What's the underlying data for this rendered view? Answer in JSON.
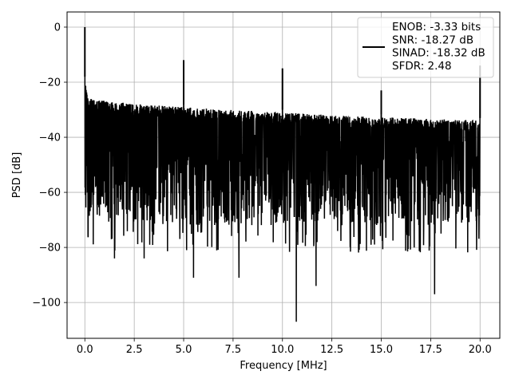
{
  "chart_data": {
    "type": "line",
    "title": "",
    "xlabel": "Frequency [MHz]",
    "ylabel": "PSD [dB]",
    "xlim": [
      -0.9,
      21.0
    ],
    "ylim": [
      -113,
      5.5
    ],
    "xticks": [
      0.0,
      2.5,
      5.0,
      7.5,
      10.0,
      12.5,
      15.0,
      17.5,
      20.0
    ],
    "xtick_labels": [
      "0.0",
      "2.5",
      "5.0",
      "7.5",
      "10.0",
      "12.5",
      "15.0",
      "17.5",
      "20.0"
    ],
    "yticks": [
      0,
      -20,
      -40,
      -60,
      -80,
      -100
    ],
    "ytick_labels": [
      "0",
      "−20",
      "−40",
      "−60",
      "−80",
      "−100"
    ],
    "grid": true,
    "legend_position": "upper-right",
    "legend_lines": [
      "ENOB: -3.33 bits",
      "SNR: -18.27 dB",
      "SINAD: -18.32 dB",
      "SFDR: 2.48"
    ],
    "series": [
      {
        "color": "#000000",
        "x_range": [
          0.0,
          20.0
        ],
        "description_points": {
          "spikes": [
            {
              "x": 0.0,
              "y": 0
            },
            {
              "x": 5.0,
              "y": -12
            },
            {
              "x": 10.0,
              "y": -15
            },
            {
              "x": 15.0,
              "y": -23
            },
            {
              "x": 20.0,
              "y": -14
            }
          ],
          "upper_envelope": [
            {
              "x": 0.0,
              "y": -18
            },
            {
              "x": 0.2,
              "y": -25
            },
            {
              "x": 2.5,
              "y": -27
            },
            {
              "x": 7.5,
              "y": -29
            },
            {
              "x": 12.5,
              "y": -31
            },
            {
              "x": 20.0,
              "y": -33
            }
          ],
          "lower_envelope": [
            {
              "x": 0.0,
              "y": -70
            },
            {
              "x": 1.5,
              "y": -84
            },
            {
              "x": 3.0,
              "y": -84
            },
            {
              "x": 5.5,
              "y": -91
            },
            {
              "x": 7.8,
              "y": -91
            },
            {
              "x": 10.7,
              "y": -107
            },
            {
              "x": 11.7,
              "y": -94
            },
            {
              "x": 17.7,
              "y": -97
            },
            {
              "x": 20.0,
              "y": -83
            }
          ]
        }
      }
    ]
  }
}
